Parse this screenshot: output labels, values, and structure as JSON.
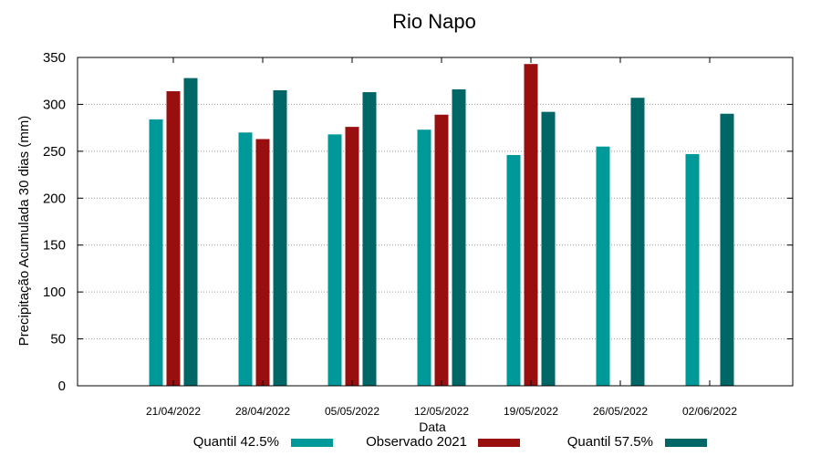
{
  "chart_data": {
    "type": "bar",
    "title": "Rio Napo",
    "xlabel": "Data",
    "ylabel": "Precipitação Acumulada 30 dias (mm)",
    "ylim": [
      0,
      350
    ],
    "yticks": [
      0,
      50,
      100,
      150,
      200,
      250,
      300,
      350
    ],
    "grid": true,
    "legend_position": "bottom",
    "categories": [
      "21/04/2022",
      "28/04/2022",
      "05/05/2022",
      "12/05/2022",
      "19/05/2022",
      "26/05/2022",
      "02/06/2022"
    ],
    "series": [
      {
        "name": "Quantil 42.5%",
        "color": "#009999",
        "values": [
          284,
          270,
          268,
          273,
          246,
          255,
          247
        ]
      },
      {
        "name": "Observado 2021",
        "color": "#990f0f",
        "values": [
          314,
          263,
          276,
          289,
          343,
          null,
          null
        ]
      },
      {
        "name": "Quantil 57.5%",
        "color": "#006666",
        "values": [
          328,
          315,
          313,
          316,
          292,
          307,
          290
        ]
      }
    ]
  }
}
